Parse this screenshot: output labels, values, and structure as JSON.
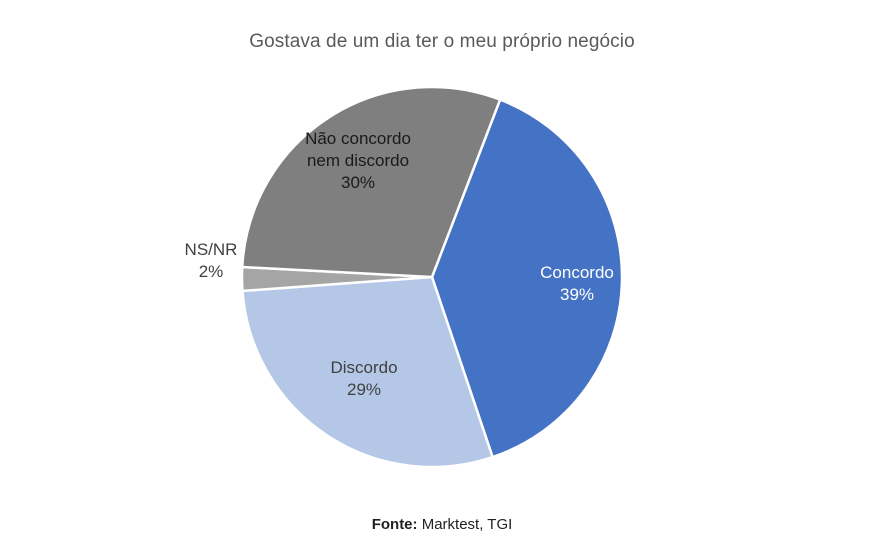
{
  "chart_data": {
    "type": "pie",
    "title": "Gostava de um dia ter o meu próprio negócio",
    "slices": [
      {
        "label_lines": [
          "Concordo"
        ],
        "value": 39,
        "value_label": "39%",
        "color": "#4472c4",
        "text_color": "#ffffff"
      },
      {
        "label_lines": [
          "Discordo"
        ],
        "value": 29,
        "value_label": "29%",
        "color": "#b4c7e7",
        "text_color": "#404040"
      },
      {
        "label_lines": [
          "NS/NR"
        ],
        "value": 2,
        "value_label": "2%",
        "color": "#a5a5a5",
        "text_color": "#404040"
      },
      {
        "label_lines": [
          "Não concordo",
          "nem discordo"
        ],
        "value": 30,
        "value_label": "30%",
        "color": "#7f7f7f",
        "text_color": "#1a1a1a"
      }
    ],
    "legend": "none"
  },
  "footer": {
    "source_label": "Fonte:",
    "source_text": "Marktest, TGI"
  }
}
